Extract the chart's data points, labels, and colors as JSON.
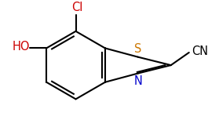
{
  "bg_color": "#ffffff",
  "bond_color": "#000000",
  "label_colors": {
    "Cl": "#cc0000",
    "HO": "#cc0000",
    "S": "#cc7700",
    "N": "#0000cc",
    "CN": "#000000"
  },
  "bond_width": 1.5,
  "figsize": [
    2.65,
    1.53
  ],
  "dpi": 100
}
